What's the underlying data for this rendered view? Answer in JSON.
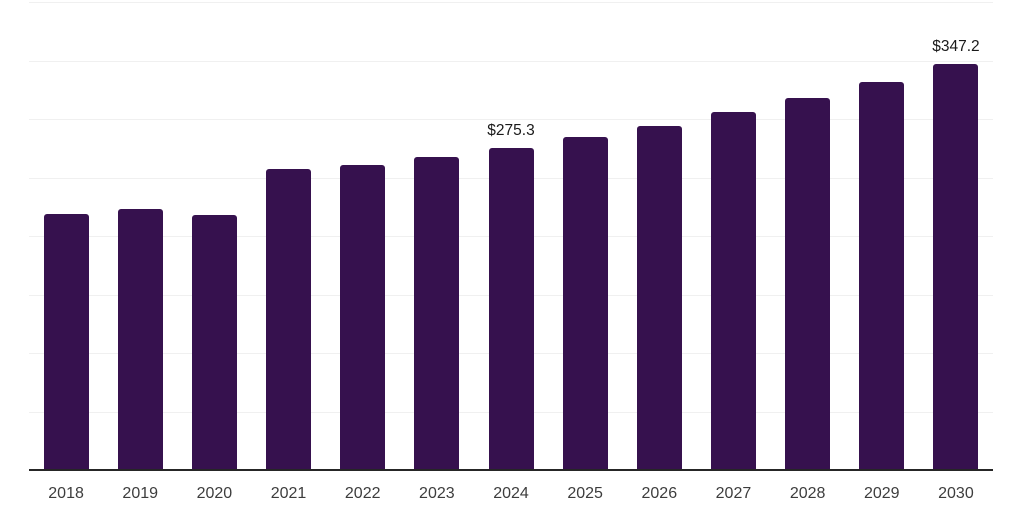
{
  "page": {
    "background": "#ffffff"
  },
  "chart_data": {
    "type": "bar",
    "title": "",
    "xlabel": "",
    "ylabel": "",
    "categories": [
      "2018",
      "2019",
      "2020",
      "2021",
      "2022",
      "2023",
      "2024",
      "2025",
      "2026",
      "2027",
      "2028",
      "2029",
      "2030"
    ],
    "values": [
      219.0,
      223.4,
      217.6,
      257.4,
      261.1,
      267.9,
      275.3,
      284.4,
      294.2,
      306.1,
      317.8,
      332.0,
      347.2
    ],
    "data_labels": [
      "",
      "",
      "",
      "",
      "",
      "",
      "$275.3",
      "",
      "",
      "",
      "",
      "",
      "$347.2"
    ],
    "ylim": [
      0,
      400
    ],
    "gridline_step": 50,
    "grid": true,
    "legend_position": "none",
    "colors": {
      "bar": "#36114e",
      "axis_line": "#262626",
      "gridline": "#f0f0f0",
      "tick_label": "#3d3d3d",
      "data_label": "#1a1a1a"
    }
  }
}
